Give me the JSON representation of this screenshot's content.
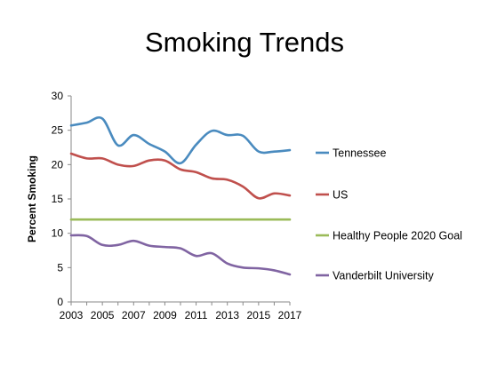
{
  "chart_data": {
    "type": "line",
    "title": "Smoking Trends",
    "xlabel": "",
    "ylabel": "Percent Smoking",
    "ylim": [
      0,
      30
    ],
    "xlim": [
      2003,
      2017
    ],
    "x_ticks": [
      "2003",
      "2005",
      "2007",
      "2009",
      "2011",
      "2013",
      "2015",
      "2017"
    ],
    "y_ticks": [
      "0",
      "5",
      "10",
      "15",
      "20",
      "25",
      "30"
    ],
    "grid": false,
    "legend_position": "right",
    "x": [
      2003,
      2004,
      2005,
      2006,
      2007,
      2008,
      2009,
      2010,
      2011,
      2012,
      2013,
      2014,
      2015,
      2016,
      2017
    ],
    "series": [
      {
        "name": "Tennessee",
        "color": "#4a8bbf",
        "values": [
          25.7,
          26.1,
          26.7,
          22.8,
          24.3,
          23.0,
          21.9,
          20.2,
          22.9,
          24.9,
          24.3,
          24.2,
          21.9,
          21.9,
          22.1
        ]
      },
      {
        "name": "US",
        "color": "#c0504d",
        "values": [
          21.6,
          20.9,
          20.9,
          20.0,
          19.8,
          20.6,
          20.6,
          19.3,
          18.9,
          18.0,
          17.8,
          16.8,
          15.1,
          15.8,
          15.5
        ]
      },
      {
        "name": "Healthy People 2020 Goal",
        "color": "#9bbb59",
        "values": [
          12,
          12,
          12,
          12,
          12,
          12,
          12,
          12,
          12,
          12,
          12,
          12,
          12,
          12,
          12
        ]
      },
      {
        "name": "Vanderbilt University",
        "color": "#8064a2",
        "values": [
          9.7,
          9.6,
          8.3,
          8.3,
          8.9,
          8.2,
          8.0,
          7.8,
          6.7,
          7.1,
          5.6,
          5.0,
          4.9,
          4.6,
          4.0
        ]
      }
    ]
  }
}
